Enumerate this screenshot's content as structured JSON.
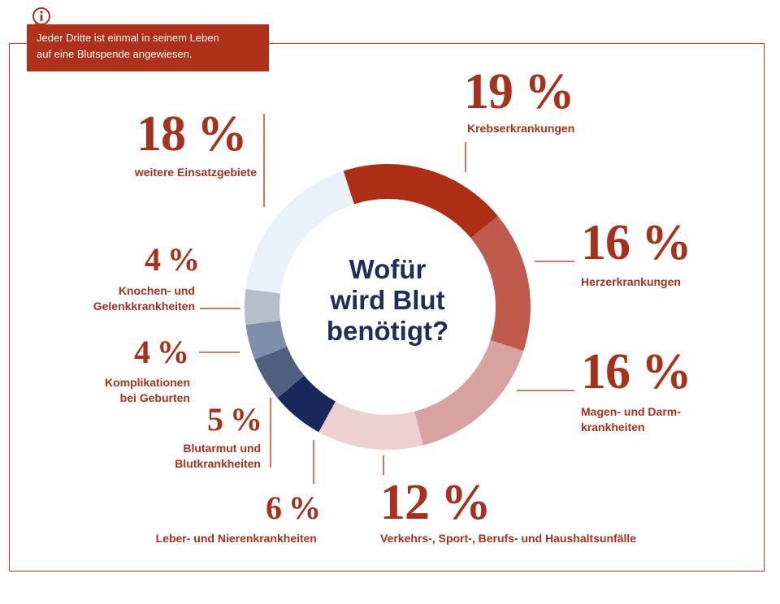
{
  "info_box": {
    "text_line1": "Jeder Dritte ist einmal in seinem Leben",
    "text_line2": "auf eine Blutspende angewiesen.",
    "icon": "info-icon"
  },
  "center_title": {
    "line1": "Wofür",
    "line2": "wird Blut",
    "line3": "benötigt?"
  },
  "colors": {
    "accent": "#a8311b",
    "frame": "#c0392b",
    "title": "#1e2d5a"
  },
  "chart_data": {
    "type": "pie",
    "categories": [
      "Krebserkrankungen",
      "Herzerkrankungen",
      "Magen- und Darmkrankheiten",
      "Verkehrs-, Sport-, Berufs- und Haushaltsunfälle",
      "Leber- und Nierenkrankheiten",
      "Blutarmut und Blutkrankheiten",
      "Komplikationen bei Geburten",
      "Knochen- und Gelenkkrankheiten",
      "weitere Einsatzgebiete"
    ],
    "values": [
      19,
      16,
      16,
      12,
      6,
      5,
      4,
      4,
      18
    ],
    "colors": [
      "#ad2e14",
      "#bf5a4d",
      "#d8a2a0",
      "#edd1d0",
      "#18285a",
      "#4f5f7e",
      "#7f8fab",
      "#b6bec9",
      "#eaf1fb"
    ],
    "title": "",
    "start_angle_deg": -18
  },
  "labels": {
    "krebs": {
      "pct": "19 %",
      "line1": "Krebserkrankungen"
    },
    "herz": {
      "pct": "16 %",
      "line1": "Herzerkrankungen"
    },
    "magen": {
      "pct": "16 %",
      "line1": "Magen- und Darm-",
      "line2": "krankheiten"
    },
    "unfaelle": {
      "pct": "12 %",
      "line1": "Verkehrs-, Sport-, Berufs- und Haushaltsunfälle"
    },
    "leber": {
      "pct": "6 %",
      "line1": "Leber- und Nierenkrankheiten"
    },
    "blutarmut": {
      "pct": "5 %",
      "line1": "Blutarmut und",
      "line2": "Blutkrankheiten"
    },
    "geburten": {
      "pct": "4 %",
      "line1": "Komplikationen",
      "line2": "bei Geburten"
    },
    "knochen": {
      "pct": "4 %",
      "line1": "Knochen- und",
      "line2": "Gelenkkrankheiten"
    },
    "weitere": {
      "pct": "18 %",
      "line1": "weitere Einsatzgebiete"
    }
  }
}
